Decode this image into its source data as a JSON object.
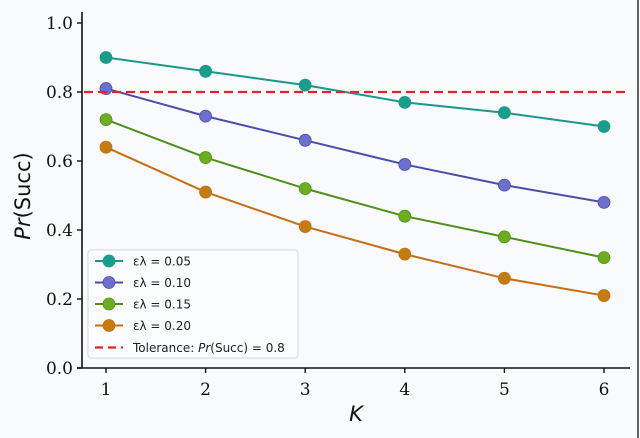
{
  "chart_data": {
    "type": "line",
    "title": "",
    "xlabel": "K",
    "ylabel": "Pr(Succ)",
    "ylabel_parts": {
      "italic": "Pr",
      "normal": "(Succ)"
    },
    "x": [
      1,
      2,
      3,
      4,
      5,
      6
    ],
    "xlim": [
      0.78,
      6.26
    ],
    "ylim": [
      0.0,
      1.0
    ],
    "xticks": [
      "1",
      "2",
      "3",
      "4",
      "5",
      "6"
    ],
    "yticks": [
      "0.0",
      "0.2",
      "0.4",
      "0.6",
      "0.8",
      "1.0"
    ],
    "ytick_values": [
      0.0,
      0.2,
      0.4,
      0.6,
      0.8,
      1.0
    ],
    "grid": false,
    "legend_position": "lower-left",
    "series": [
      {
        "name": "ε_λ = 0.05",
        "label": "ελ = 0.05",
        "color": "#1a9e8c",
        "line_color": "#1b978a",
        "values": [
          0.9,
          0.86,
          0.82,
          0.77,
          0.74,
          0.7
        ]
      },
      {
        "name": "ε_λ = 0.10",
        "label": "ελ = 0.10",
        "color": "#6d6fcc",
        "line_color": "#4a4ea6",
        "values": [
          0.81,
          0.73,
          0.66,
          0.59,
          0.53,
          0.48
        ]
      },
      {
        "name": "ε_λ = 0.15",
        "label": "ελ = 0.15",
        "color": "#6cae1f",
        "line_color": "#4f8e19",
        "values": [
          0.72,
          0.61,
          0.52,
          0.44,
          0.38,
          0.32
        ]
      },
      {
        "name": "ε_λ = 0.20",
        "label": "ελ = 0.20",
        "color": "#c27c12",
        "line_color": "#c76d12",
        "values": [
          0.64,
          0.51,
          0.41,
          0.33,
          0.26,
          0.21
        ]
      }
    ],
    "reference_line": {
      "type": "horizontal",
      "y": 0.8,
      "label_prefix": "Tolerance: ",
      "label_italic": "Pr",
      "label_suffix": "(Succ) = 0.8",
      "label": "Tolerance: Pr(Succ) = 0.8",
      "color": "#e0242a",
      "style": "dashed"
    }
  }
}
